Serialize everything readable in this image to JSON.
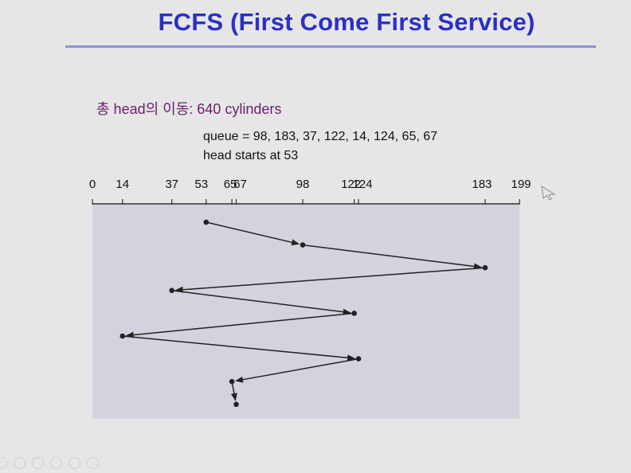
{
  "slide": {
    "title": "FCFS (First Come First Service)",
    "total_movement": "총 head의 이동: 640 cylinders",
    "queue_text": "queue = 98, 183, 37, 122, 14, 124, 65, 67",
    "head_text": "head starts at 53"
  },
  "chart_data": {
    "type": "line",
    "axis_ticks": [
      0,
      14,
      37,
      53,
      65,
      67,
      98,
      122,
      124,
      183,
      199
    ],
    "axis_range": [
      0,
      199
    ],
    "sequence": [
      53,
      98,
      183,
      37,
      122,
      14,
      124,
      65,
      67
    ],
    "colors": {
      "plot_background": "#d3d3dd",
      "line": "#222222"
    }
  },
  "icons": {
    "cursor": "mouse-pointer-icon",
    "toolbar": [
      "previous-icon",
      "next-icon",
      "pen-icon",
      "grid-icon",
      "zoom-icon",
      "more-icon"
    ]
  }
}
